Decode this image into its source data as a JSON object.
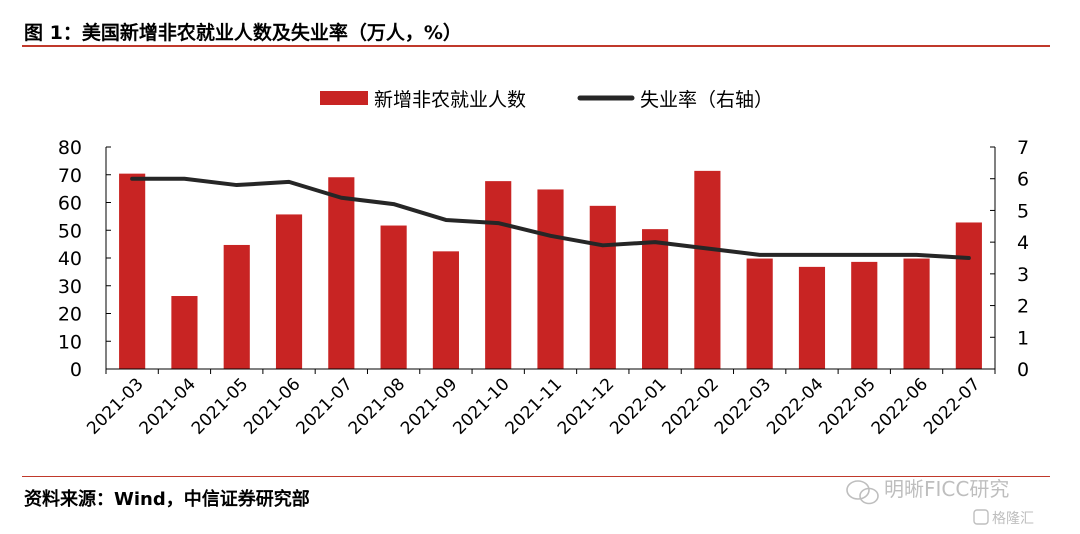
{
  "header": {
    "title": "图 1：美国新增非农就业人数及失业率（万人，%）"
  },
  "footer": {
    "source": "资料来源：Wind，中信证券研究部",
    "watermark_name": "明晰FICC研究",
    "watermark_badge": "格隆汇",
    "wechat_icon": "wechat-icon"
  },
  "colors": {
    "accent_red": "#C82423",
    "line_dark": "#262626",
    "rule_red": "#C0392B"
  },
  "chart_data": {
    "type": "bar",
    "categories": [
      "2021-03",
      "2021-04",
      "2021-05",
      "2021-06",
      "2021-07",
      "2021-08",
      "2021-09",
      "2021-10",
      "2021-11",
      "2021-12",
      "2022-01",
      "2022-02",
      "2022-03",
      "2022-04",
      "2022-05",
      "2022-06",
      "2022-07"
    ],
    "series": [
      {
        "name": "新增非农就业人数",
        "type": "bar",
        "axis": "left",
        "color": "#C82423",
        "values": [
          70.4,
          26.3,
          44.7,
          55.7,
          69.1,
          51.7,
          42.4,
          67.7,
          64.7,
          58.8,
          50.4,
          71.4,
          39.8,
          36.8,
          38.6,
          39.8,
          52.8
        ]
      },
      {
        "name": "失业率（右轴）",
        "type": "line",
        "axis": "right",
        "color": "#262626",
        "values": [
          6.0,
          6.0,
          5.8,
          5.9,
          5.4,
          5.2,
          4.7,
          4.6,
          4.2,
          3.9,
          4.0,
          3.8,
          3.6,
          3.6,
          3.6,
          3.6,
          3.5
        ]
      }
    ],
    "ylim": [
      0,
      80
    ],
    "y_ticks": [
      0,
      10,
      20,
      30,
      40,
      50,
      60,
      70,
      80
    ],
    "y2lim": [
      0,
      7
    ],
    "y2_ticks": [
      0,
      1,
      2,
      3,
      4,
      5,
      6,
      7
    ],
    "legend_position": "top-center",
    "grid": false
  }
}
